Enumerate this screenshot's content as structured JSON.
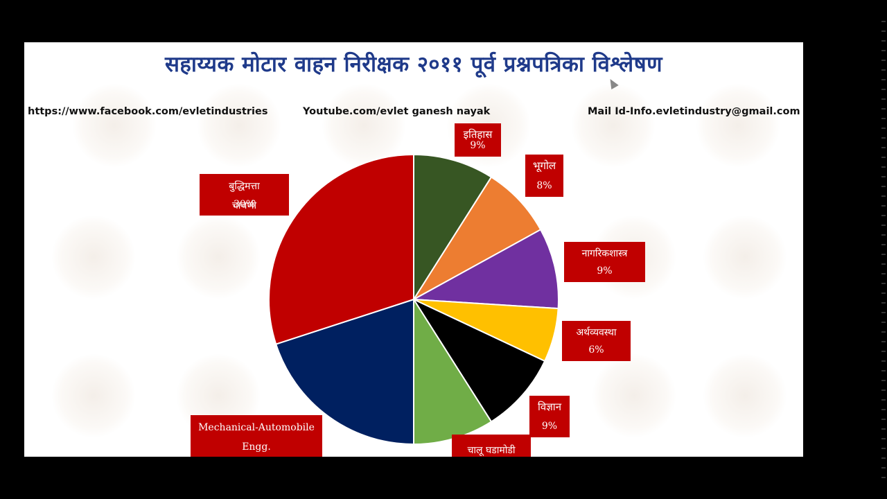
{
  "title": "सहाय्यक मोटार वाहन निरीक्षक २०११ पूर्व प्रश्नपत्रिका विश्लेषण",
  "links": {
    "facebook": "https://www.facebook.com/evletindustries",
    "youtube": "Youtube.com/evlet ganesh nayak",
    "mail": "Mail Id-Info.evletindustry@gmail.com"
  },
  "chart_data": {
    "type": "pie",
    "title": "",
    "start": "12 o'clock, clockwise",
    "series": [
      {
        "label": "इतिहास",
        "percent_label": "9%",
        "value": 9,
        "color": "#375623"
      },
      {
        "label": "भूगोल",
        "percent_label": "8%",
        "value": 8,
        "color": "#ED7D31"
      },
      {
        "label": "नागरिकशास्त्र",
        "percent_label": "9%",
        "value": 9,
        "color": "#7030A0"
      },
      {
        "label": "अर्थव्यवस्था",
        "percent_label": "6%",
        "value": 6,
        "color": "#FFC000"
      },
      {
        "label": "विज्ञान",
        "percent_label": "9%",
        "value": 9,
        "color": "#000000"
      },
      {
        "label": "चालू घडामोडी",
        "percent_label": "",
        "value": 9,
        "color": "#70AD47"
      },
      {
        "label": "Mechanical-Automobile Engg.",
        "percent_label": "",
        "value": 20,
        "color": "#002060"
      },
      {
        "label": "बुद्धिमत्ता चाचणी",
        "percent_label": "30%",
        "value": 30,
        "color": "#C00000"
      }
    ],
    "label_box_color": "#C00000",
    "label_text_color": "#FFFFFF"
  }
}
